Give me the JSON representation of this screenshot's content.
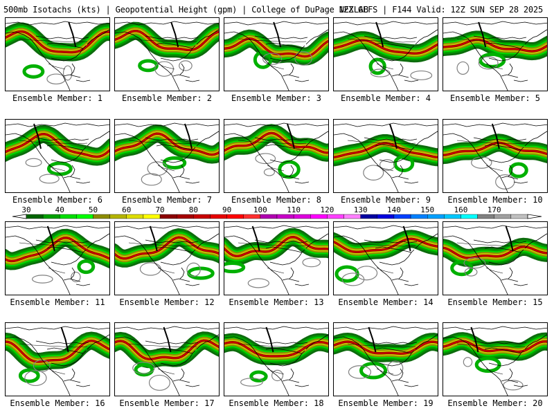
{
  "header": {
    "left": "500mb Isotachs (kts) | Geopotential Height (gpm) | College of DuPage NEXLAB",
    "right": "12Z GEFS | F144 Valid: 12Z SUN SEP 28 2025"
  },
  "colors": {
    "background": "#ffffff",
    "coast": "#000000",
    "height_contour": "#808080"
  },
  "colorbar": {
    "labels": [
      "30",
      "40",
      "50",
      "60",
      "70",
      "80",
      "90",
      "100",
      "110",
      "120",
      "130",
      "140",
      "150",
      "160",
      "170"
    ],
    "colors": [
      "#006400",
      "#00a000",
      "#00dd00",
      "#00ff00",
      "#8c8c00",
      "#b4b400",
      "#dddd00",
      "#ffff00",
      "#8b0000",
      "#a50000",
      "#c80000",
      "#e60000",
      "#ff0000",
      "#ff3030",
      "#b000b0",
      "#c800c8",
      "#dd00dd",
      "#ff00ff",
      "#ff40ff",
      "#ff80ff",
      "#0000a0",
      "#0000dd",
      "#0040ff",
      "#0080ff",
      "#00a0ff",
      "#00c8ff",
      "#00ffff",
      "#808080",
      "#a0a0a0",
      "#c0c0c0"
    ]
  },
  "members": [
    {
      "label": "Ensemble Member: 1"
    },
    {
      "label": "Ensemble Member: 2"
    },
    {
      "label": "Ensemble Member: 3"
    },
    {
      "label": "Ensemble Member: 4"
    },
    {
      "label": "Ensemble Member: 5"
    },
    {
      "label": "Ensemble Member: 6"
    },
    {
      "label": "Ensemble Member: 7"
    },
    {
      "label": "Ensemble Member: 8"
    },
    {
      "label": "Ensemble Member: 9"
    },
    {
      "label": "Ensemble Member: 10"
    },
    {
      "label": "Ensemble Member: 11"
    },
    {
      "label": "Ensemble Member: 12"
    },
    {
      "label": "Ensemble Member: 13"
    },
    {
      "label": "Ensemble Member: 14"
    },
    {
      "label": "Ensemble Member: 15"
    },
    {
      "label": "Ensemble Member: 16"
    },
    {
      "label": "Ensemble Member: 17"
    },
    {
      "label": "Ensemble Member: 18"
    },
    {
      "label": "Ensemble Member: 19"
    },
    {
      "label": "Ensemble Member: 20"
    }
  ]
}
